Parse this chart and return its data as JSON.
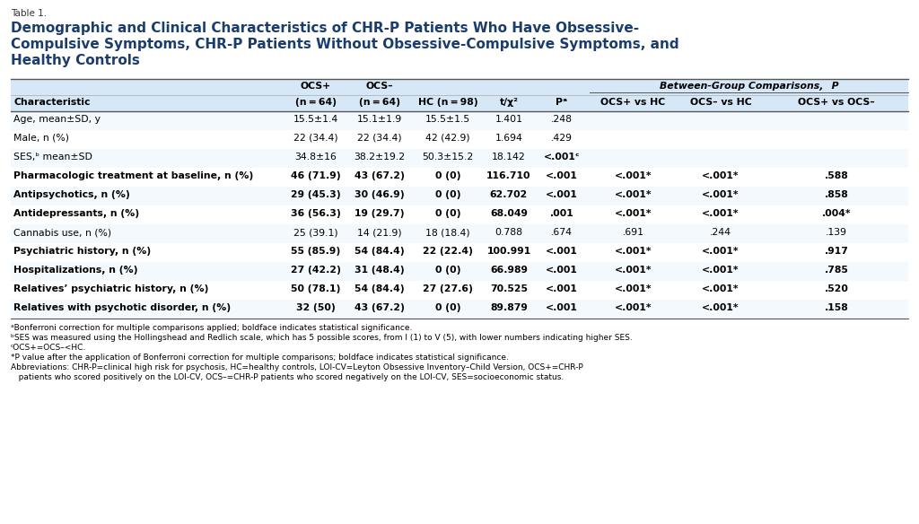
{
  "table_label": "Table 1.",
  "title_lines": [
    "Demographic and Clinical Characteristics of CHR-P Patients Who Have Obsessive-",
    "Compulsive Symptoms, CHR-P Patients Without Obsessive-Compulsive Symptoms, and",
    "Healthy Controls"
  ],
  "col_header1": [
    "OCS+",
    "OCS–"
  ],
  "col_header1_cols": [
    1,
    2
  ],
  "between_label": "Between-Group Comparisons,  P",
  "col_headers": [
    "Characteristic",
    "(n = 64)",
    "(n = 64)",
    "HC (n = 98)",
    "t/χ²",
    "Pᵃ",
    "OCS+ vs HC",
    "OCS– vs HC",
    "OCS+ vs OCS–"
  ],
  "rows": [
    [
      "Age, mean±SD, y",
      "15.5±1.4",
      "15.1±1.9",
      "15.5±1.5",
      "1.401",
      ".248",
      "",
      "",
      ""
    ],
    [
      "Male, n (%)",
      "22 (34.4)",
      "22 (34.4)",
      "42 (42.9)",
      "1.694",
      ".429",
      "",
      "",
      ""
    ],
    [
      "SES,ᵇ mean±SD",
      "34.8±16",
      "38.2±19.2",
      "50.3±15.2",
      "18.142",
      "<.001ᶜ",
      "",
      "",
      ""
    ],
    [
      "Pharmacologic treatment at baseline, n (%)",
      "46 (71.9)",
      "43 (67.2)",
      "0 (0)",
      "116.710",
      "<.001",
      "<.001*",
      "<.001*",
      ".588"
    ],
    [
      "Antipsychotics, n (%)",
      "29 (45.3)",
      "30 (46.9)",
      "0 (0)",
      "62.702",
      "<.001",
      "<.001*",
      "<.001*",
      ".858"
    ],
    [
      "Antidepressants, n (%)",
      "36 (56.3)",
      "19 (29.7)",
      "0 (0)",
      "68.049",
      ".001",
      "<.001*",
      "<.001*",
      ".004*"
    ],
    [
      "Cannabis use, n (%)",
      "25 (39.1)",
      "14 (21.9)",
      "18 (18.4)",
      "0.788",
      ".674",
      ".691",
      ".244",
      ".139"
    ],
    [
      "Psychiatric history, n (%)",
      "55 (85.9)",
      "54 (84.4)",
      "22 (22.4)",
      "100.991",
      "<.001",
      "<.001*",
      "<.001*",
      ".917"
    ],
    [
      "Hospitalizations, n (%)",
      "27 (42.2)",
      "31 (48.4)",
      "0 (0)",
      "66.989",
      "<.001",
      "<.001*",
      "<.001*",
      ".785"
    ],
    [
      "Relatives’ psychiatric history, n (%)",
      "50 (78.1)",
      "54 (84.4)",
      "27 (27.6)",
      "70.525",
      "<.001",
      "<.001*",
      "<.001*",
      ".520"
    ],
    [
      "Relatives with psychotic disorder, n (%)",
      "32 (50)",
      "43 (67.2)",
      "0 (0)",
      "89.879",
      "<.001",
      "<.001*",
      "<.001*",
      ".158"
    ]
  ],
  "bold_rows": [
    3,
    4,
    5,
    7,
    8,
    9,
    10
  ],
  "bold_p_rows": [
    2,
    3,
    4,
    5,
    7,
    8,
    9,
    10
  ],
  "extra_bold_cells": [
    [
      5,
      8
    ]
  ],
  "footnotes": [
    "ᵃBonferroni correction for multiple comparisons applied; boldface indicates statistical significance.",
    "ᵇSES was measured using the Hollingshead and Redlich scale, which has 5 possible scores, from I (1) to V (5), with lower numbers indicating higher SES.",
    "ᶜOCS+=OCS–<HC.",
    "*P value after the application of Bonferroni correction for multiple comparisons; boldface indicates statistical significance.",
    "Abbreviations: CHR-P=clinical high risk for psychosis, HC=healthy controls, LOI-CV=Leyton Obsessive Inventory–Child Version, OCS+=CHR-P",
    "   patients who scored positively on the LOI-CV, OCS–=CHR-P patients who scored negatively on the LOI-CV, SES=socioeconomic status."
  ],
  "header_bg": "#d6e8f7",
  "between_bg": "#d6e8f7",
  "body_bg": "#f4f9fd",
  "title_color": "#1b3d6e",
  "text_color": "#000000",
  "line_color": "#aaaaaa",
  "strong_line_color": "#555555"
}
